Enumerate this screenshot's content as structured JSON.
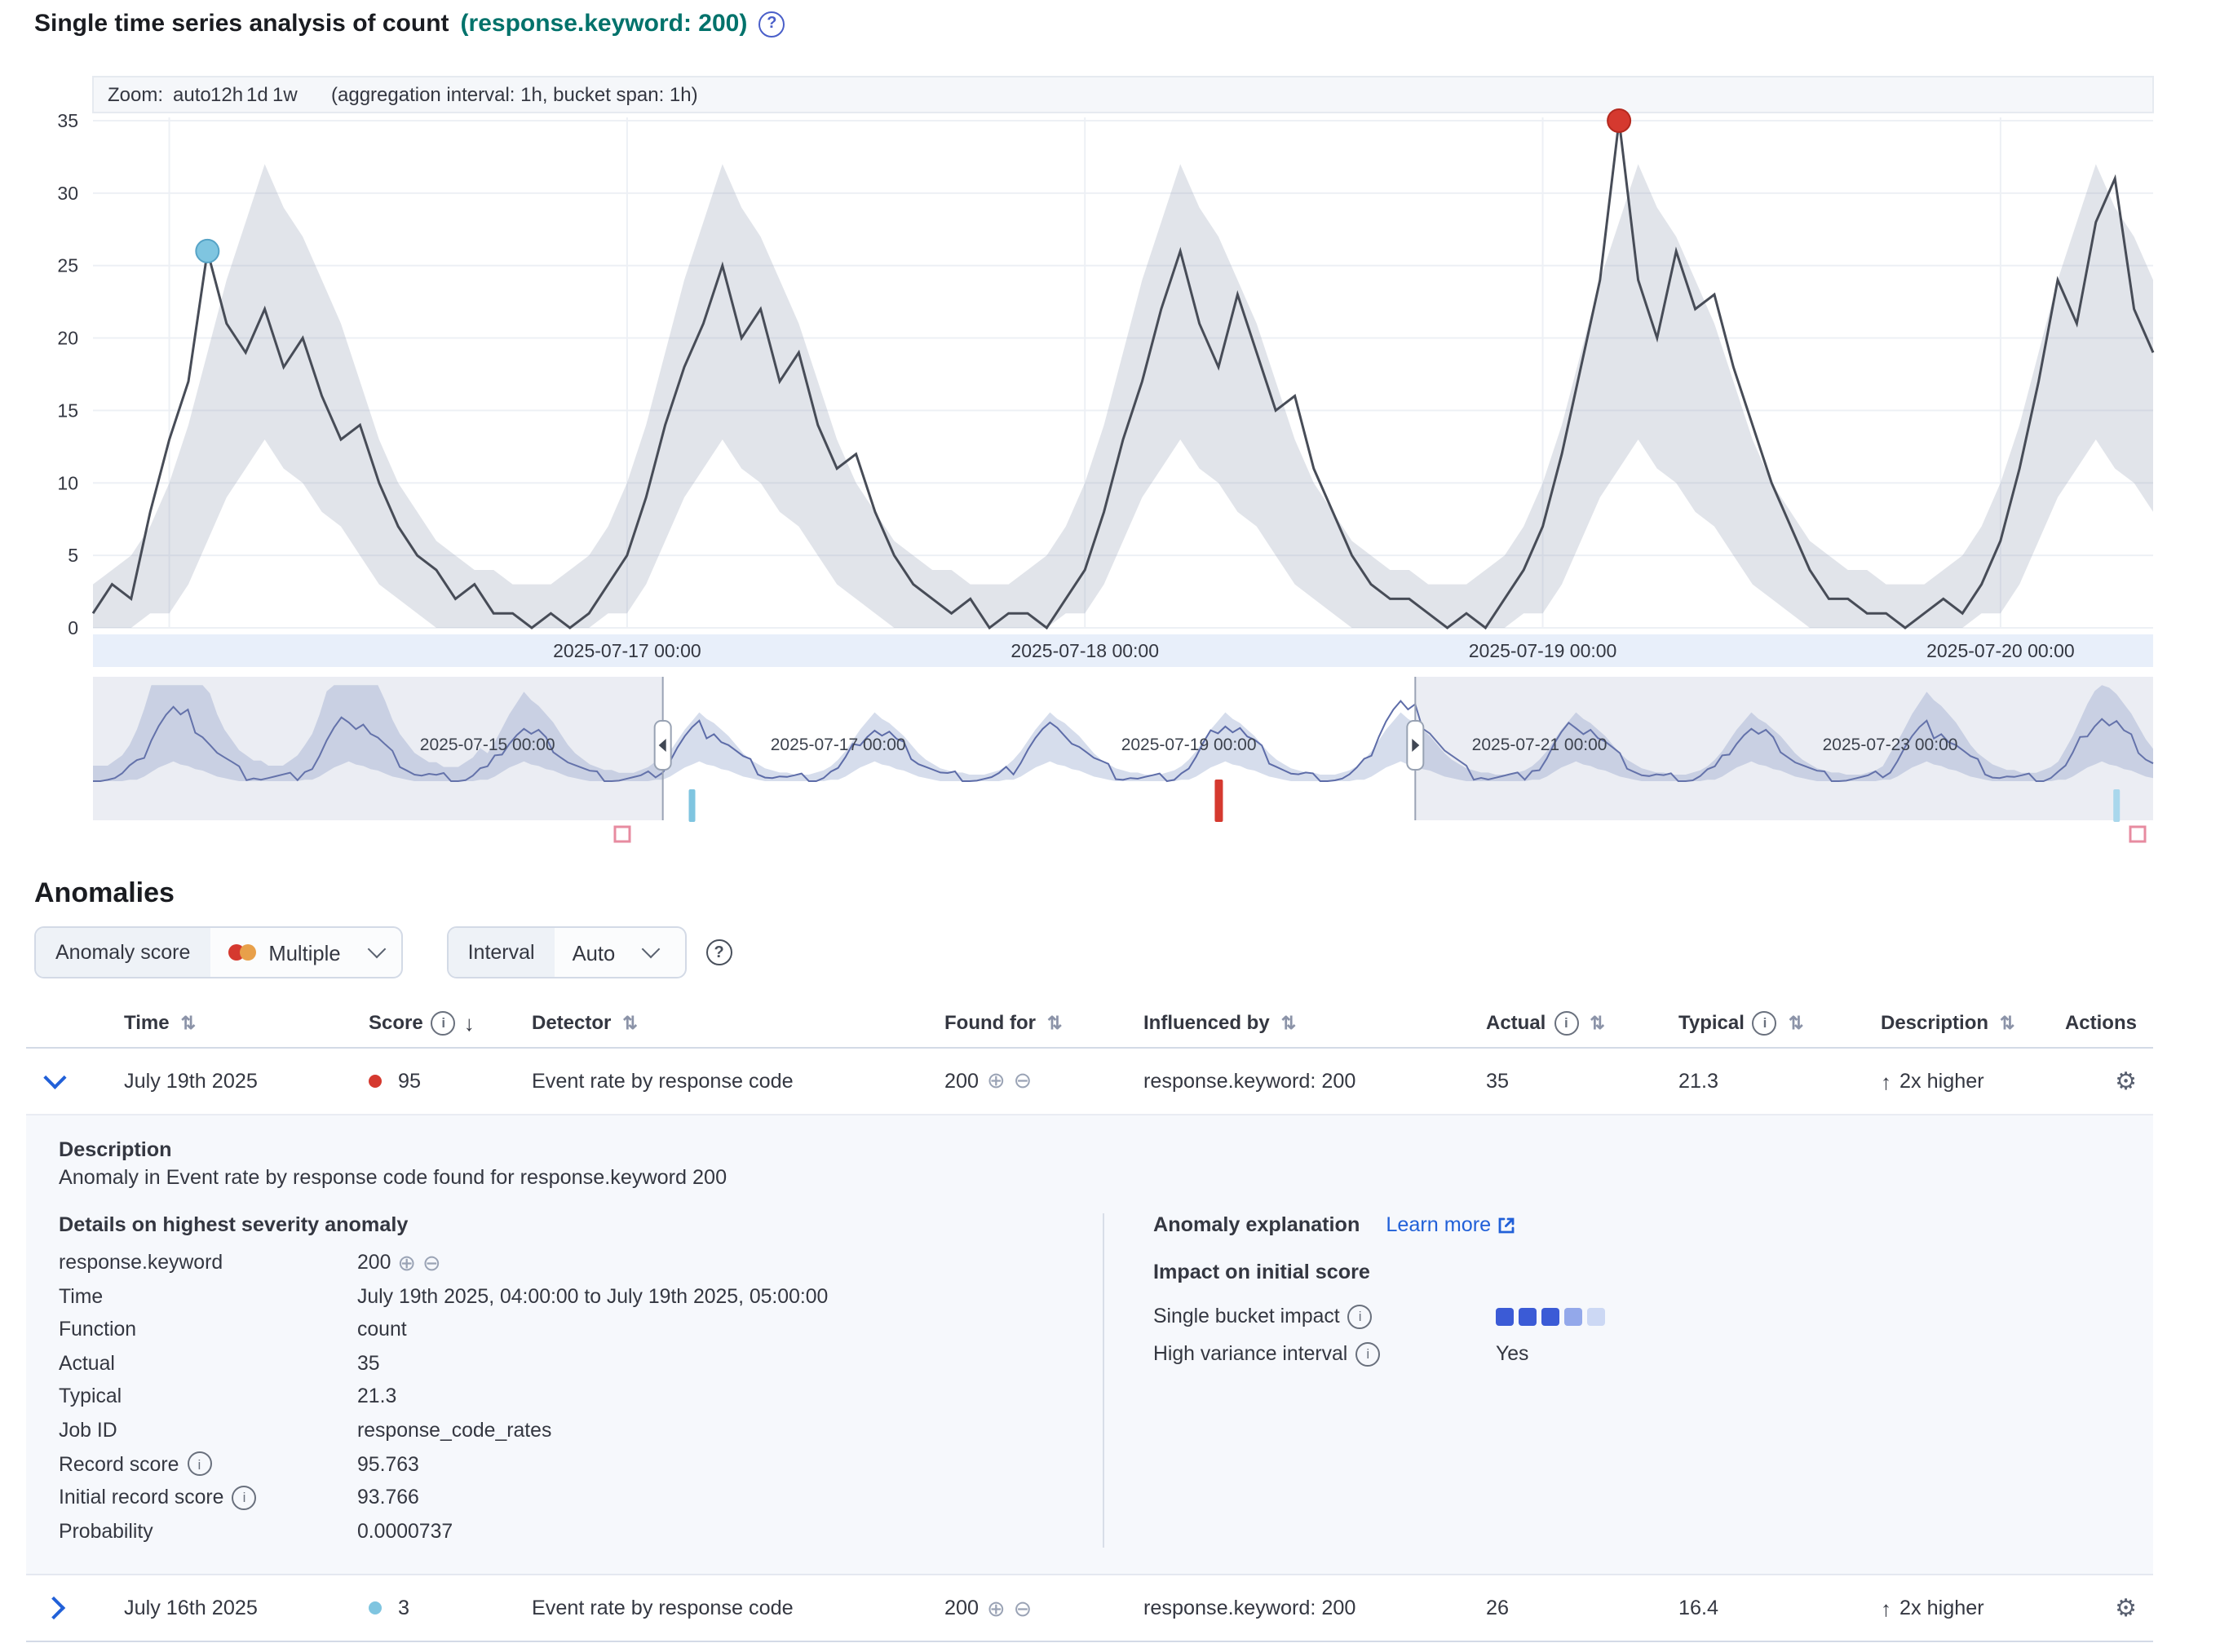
{
  "page": {
    "title": "Single time series analysis of count",
    "title_highlight": "(response.keyword: 200)"
  },
  "colors": {
    "critical": "#d5392f",
    "low": "#7fc5e0",
    "primary": "#2160d8",
    "teal": "#00726B",
    "line": "#474c57",
    "band": "rgba(154,167,184,0.30)",
    "context_line": "#5d6ca8",
    "context_band": "rgba(129,149,196,0.32)"
  },
  "chart": {
    "zoom_label": "Zoom:",
    "zoom_options": [
      "auto",
      "12h",
      "1d",
      "1w"
    ],
    "zoom_note": "(aggregation interval: 1h, bucket span: 1h)"
  },
  "chart_data": {
    "type": "line",
    "title": "Single time series analysis of count",
    "x_start": "2025-07-15 20:00",
    "x_step": "1h",
    "ylim": [
      0,
      36
    ],
    "y_ticks": [
      0,
      5,
      10,
      15,
      20,
      25,
      30,
      35
    ],
    "x_tick_labels": [
      "2025-07-17 00:00",
      "2025-07-18 00:00",
      "2025-07-19 00:00",
      "2025-07-20 00:00"
    ],
    "x_tick_t": [
      28,
      52,
      76,
      100
    ],
    "v_grid_t": [
      4,
      28,
      52,
      76,
      100
    ],
    "values": [
      1,
      3,
      2,
      8,
      13,
      17,
      26,
      21,
      19,
      22,
      18,
      20,
      16,
      13,
      14,
      10,
      7,
      5,
      4,
      2,
      3,
      1,
      1,
      0,
      1,
      0,
      1,
      3,
      5,
      9,
      14,
      18,
      21,
      25,
      20,
      22,
      17,
      19,
      14,
      11,
      12,
      8,
      5,
      3,
      2,
      1,
      2,
      0,
      1,
      1,
      0,
      2,
      4,
      8,
      13,
      17,
      22,
      26,
      21,
      18,
      23,
      19,
      15,
      16,
      11,
      8,
      5,
      3,
      2,
      2,
      1,
      0,
      1,
      0,
      2,
      4,
      7,
      12,
      18,
      24,
      35,
      24,
      20,
      26,
      22,
      23,
      18,
      14,
      10,
      7,
      4,
      2,
      2,
      1,
      1,
      0,
      1,
      2,
      1,
      3,
      6,
      11,
      17,
      24,
      21,
      28,
      31,
      22,
      19
    ],
    "model_upper_by_hour": [
      10,
      14,
      19,
      24,
      28,
      32,
      29,
      27,
      24,
      21,
      17,
      13,
      10,
      8,
      6,
      5,
      4,
      4,
      3,
      3,
      3,
      4,
      5,
      7
    ],
    "model_lower_by_hour": [
      1,
      3,
      6,
      9,
      11,
      13,
      11,
      10,
      8,
      7,
      5,
      3,
      2,
      1,
      0,
      0,
      0,
      0,
      0,
      0,
      0,
      0,
      0,
      1
    ],
    "anomalies": [
      {
        "severity": "low",
        "time": "2025-07-16 02:00",
        "t_index": 6,
        "value": 26,
        "color": "#7fc5e0",
        "stroke": "#56a3c6"
      },
      {
        "severity": "critical",
        "time": "2025-07-19 04:00",
        "t_index": 80,
        "value": 35,
        "color": "#d5392f",
        "stroke": "#b4291f"
      }
    ],
    "context_chart": {
      "x_tick_labels": [
        "2025-07-15 00:00",
        "2025-07-17 00:00",
        "2025-07-19 00:00",
        "2025-07-21 00:00",
        "2025-07-23 00:00"
      ],
      "x_tick_t": [
        54,
        102,
        150,
        198,
        246
      ],
      "range_hours": 282,
      "start_hour_of_day": 18,
      "daily_template": [
        5,
        9,
        14,
        18,
        21,
        23,
        20,
        21,
        17,
        15,
        12,
        9,
        7,
        5,
        3,
        2,
        2,
        1,
        1,
        1,
        1,
        1,
        2,
        4
      ],
      "day_scales": [
        1.2,
        1.25,
        1.1,
        0.9,
        0.95,
        0.9,
        0.95,
        1.0,
        1.35,
        1.0,
        0.9,
        0.95,
        1.1
      ],
      "band_scales": [
        2.4,
        2.4,
        2.2,
        1.3,
        1,
        1,
        1,
        1,
        1,
        1,
        1,
        1.3,
        1.5
      ],
      "brush": {
        "start_h": 78,
        "end_h": 181
      },
      "anomaly_marks": [
        {
          "t": 82,
          "color": "#7fc5e0",
          "h": 20
        },
        {
          "t": 154,
          "color": "#d5392f",
          "h": 26
        },
        {
          "t": 277,
          "color": "#a9d7ec",
          "h": 20
        }
      ]
    }
  },
  "anomalies": {
    "heading": "Anomalies",
    "score_filter": {
      "label": "Anomaly score",
      "value": "Multiple"
    },
    "interval_filter": {
      "label": "Interval",
      "value": "Auto"
    },
    "table": {
      "columns": [
        "Time",
        "Score",
        "Detector",
        "Found for",
        "Influenced by",
        "Actual",
        "Typical",
        "Description",
        "Actions"
      ],
      "rows": [
        {
          "time": "July 19th 2025",
          "score": "95",
          "color": "#d5392f",
          "detector": "Event rate by response code",
          "found_for": "200",
          "influenced_by": "response.keyword: 200",
          "actual": "35",
          "typical": "21.3",
          "description": "2x higher"
        },
        {
          "time": "July 16th 2025",
          "score": "3",
          "color": "#7fc5e0",
          "detector": "Event rate by response code",
          "found_for": "200",
          "influenced_by": "response.keyword: 200",
          "actual": "26",
          "typical": "16.4",
          "description": "2x higher"
        }
      ]
    },
    "details": {
      "description_title": "Description",
      "description": "Anomaly in Event rate by response code found for response.keyword 200",
      "details_title": "Details on highest severity anomaly",
      "fields": [
        {
          "label": "response.keyword",
          "value": "200"
        },
        {
          "label": "Time",
          "value": "July 19th 2025, 04:00:00 to July 19th 2025, 05:00:00"
        },
        {
          "label": "Function",
          "value": "count"
        },
        {
          "label": "Actual",
          "value": "35"
        },
        {
          "label": "Typical",
          "value": "21.3"
        },
        {
          "label": "Job ID",
          "value": "response_code_rates"
        },
        {
          "label": "Record score",
          "value": "95.763"
        },
        {
          "label": "Initial record score",
          "value": "93.766"
        },
        {
          "label": "Probability",
          "value": "0.0000737"
        }
      ],
      "explanation_title": "Anomaly explanation",
      "learn_more": "Learn more",
      "impact_title": "Impact on initial score",
      "impact_rows": [
        {
          "label": "Single bucket impact",
          "impact": 3
        },
        {
          "label": "High variance interval",
          "value": "Yes"
        }
      ],
      "impact_colors": [
        "#3b5bd6",
        "#93a8ea",
        "#ccd8f4"
      ]
    }
  }
}
